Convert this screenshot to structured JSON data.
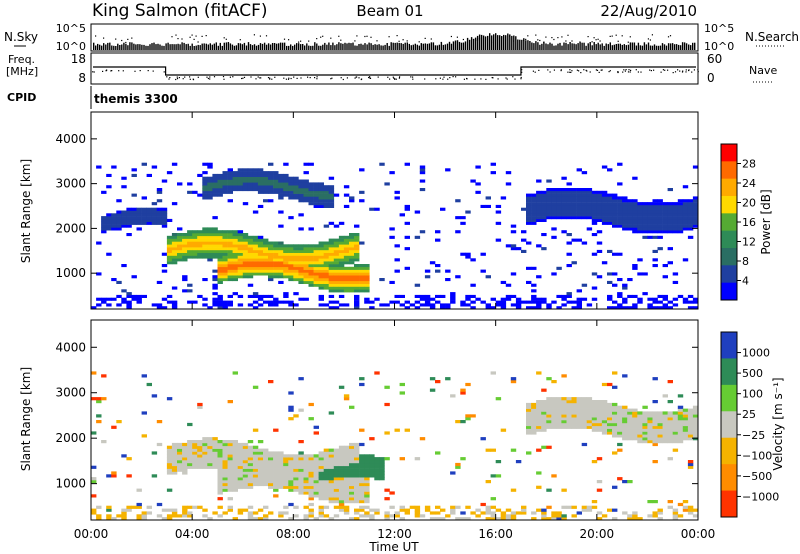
{
  "header": {
    "station": "King Salmon (fitACF)",
    "beam": "Beam 01",
    "date": "22/Aug/2010"
  },
  "noise_panel": {
    "left_label_1": "N.Sky",
    "right_label_1": "N.Search",
    "left_ticks": [
      "10^5",
      "10^0"
    ],
    "right_ticks": [
      "10^5",
      "10^0"
    ]
  },
  "freq_panel": {
    "left_label_1": "Freq.",
    "left_label_2": "[MHz]",
    "right_label": "Nave",
    "left_ticks": [
      "18",
      "8"
    ],
    "right_ticks": [
      "60",
      "0"
    ]
  },
  "cpid": {
    "label": "CPID",
    "value": "themis 3300"
  },
  "axes": {
    "x_label": "Time UT",
    "x_ticks": [
      "00:00",
      "04:00",
      "08:00",
      "12:00",
      "16:00",
      "20:00",
      "00:00"
    ],
    "y_label": "Slant Range [km]",
    "y_ticks": [
      "4000",
      "3000",
      "2000",
      "1000"
    ]
  },
  "power_scale": {
    "label": "Power [dB]",
    "ticks": [
      "28",
      "24",
      "20",
      "16",
      "12",
      "8",
      "4"
    ],
    "colors": [
      "#ff0000",
      "#ff6a00",
      "#ffaa00",
      "#ffd900",
      "#55aa33",
      "#2e8b57",
      "#2a6e63",
      "#1f3fa0",
      "#0000ff"
    ]
  },
  "velocity_scale": {
    "label": "Velocity [m s⁻¹]",
    "ticks": [
      "1000",
      "500",
      "100",
      "25",
      "−25",
      "−100",
      "−500",
      "−1000"
    ],
    "colors": [
      "#1f3fbf",
      "#2e8b57",
      "#66cc33",
      "#c8c8c0",
      "#f5b300",
      "#ff8c00",
      "#ff3300"
    ]
  },
  "chart_data": [
    {
      "type": "heatmap",
      "title": "Power",
      "xlabel": "Time UT",
      "ylabel": "Slant Range [km]",
      "xlim": [
        0,
        24
      ],
      "ylim": [
        200,
        4600
      ],
      "colorbar": {
        "label": "Power [dB]",
        "range": [
          0,
          30
        ]
      },
      "features": [
        {
          "t0": 3.0,
          "t1": 10.5,
          "r_center": 1500,
          "r_width": 320,
          "peak_db": 22
        },
        {
          "t0": 5.0,
          "t1": 11.0,
          "r_center": 1050,
          "r_width": 300,
          "peak_db": 26
        },
        {
          "t0": 4.5,
          "t1": 9.5,
          "r_center": 2900,
          "r_width": 250,
          "peak_db": 8
        },
        {
          "t0": 0.5,
          "t1": 3.0,
          "r_center": 2100,
          "r_width": 200,
          "peak_db": 6
        },
        {
          "t0": 17.2,
          "t1": 24,
          "r_center": 2400,
          "r_width": 350,
          "peak_db": 6
        }
      ]
    },
    {
      "type": "heatmap",
      "title": "Velocity",
      "xlabel": "Time UT",
      "ylabel": "Slant Range [km]",
      "xlim": [
        0,
        24
      ],
      "ylim": [
        200,
        4600
      ],
      "colorbar": {
        "label": "Velocity [m s⁻¹]",
        "range": [
          -1000,
          1000
        ]
      },
      "features": [
        {
          "t0": 3.0,
          "t1": 10.5,
          "r_center": 1500,
          "r_width": 320,
          "velocity": 0
        },
        {
          "t0": 5.0,
          "t1": 11.0,
          "r_center": 1050,
          "r_width": 300,
          "velocity": 0
        },
        {
          "t0": 9.0,
          "t1": 11.5,
          "r_center": 1200,
          "r_width": 250,
          "velocity": 150
        },
        {
          "t0": 17.2,
          "t1": 24,
          "r_center": 2400,
          "r_width": 350,
          "velocity": 0
        }
      ]
    }
  ]
}
